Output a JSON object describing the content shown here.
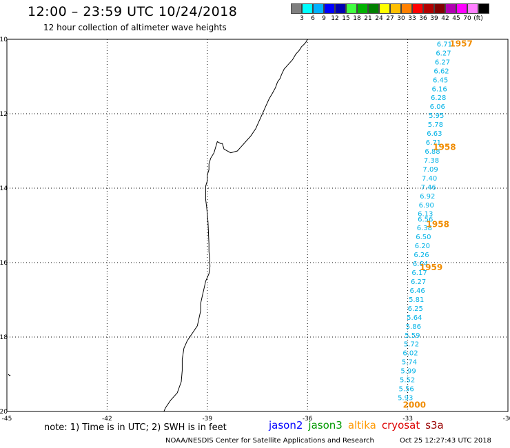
{
  "header": {
    "title": "12:00 – 23:59 UTC 10/24/2018",
    "subtitle": "12 hour collection of altimeter wave heights"
  },
  "legend": {
    "colors": [
      "#7f7f7f",
      "#00ffff",
      "#00b2ff",
      "#0000ff",
      "#0000b2",
      "#40ff40",
      "#00b200",
      "#008000",
      "#ffff00",
      "#ffbf00",
      "#ff8000",
      "#ff0000",
      "#b20000",
      "#800000",
      "#b200b2",
      "#ff00ff",
      "#ff80ff",
      "#000000"
    ],
    "labels": [
      "3",
      "6",
      "9",
      "12",
      "15",
      "18",
      "21",
      "24",
      "27",
      "30",
      "33",
      "36",
      "39",
      "42",
      "45",
      "70",
      "(ft)"
    ]
  },
  "axes": {
    "lon_ticks": [
      "-45",
      "-42",
      "-39",
      "-36",
      "-33",
      "-30"
    ],
    "lat_ticks": [
      "-10",
      "-12",
      "-14",
      "-16",
      "-18",
      "-20"
    ],
    "lon_range": [
      -45,
      -30
    ],
    "lat_range": [
      -20,
      -10
    ]
  },
  "track": {
    "color": "#00b2e6",
    "points": [
      {
        "lon": -31.9,
        "lat": -10.12,
        "value": "6.71"
      },
      {
        "lon": -31.93,
        "lat": -10.36,
        "value": "6.27"
      },
      {
        "lon": -31.96,
        "lat": -10.6,
        "value": "6.27"
      },
      {
        "lon": -31.99,
        "lat": -10.84,
        "value": "6.62"
      },
      {
        "lon": -32.02,
        "lat": -11.08,
        "value": "6.45"
      },
      {
        "lon": -32.05,
        "lat": -11.32,
        "value": "6.16"
      },
      {
        "lon": -32.08,
        "lat": -11.56,
        "value": "6.28"
      },
      {
        "lon": -32.11,
        "lat": -11.8,
        "value": "6.06"
      },
      {
        "lon": -32.14,
        "lat": -12.04,
        "value": "5.95"
      },
      {
        "lon": -32.17,
        "lat": -12.28,
        "value": "5.78"
      },
      {
        "lon": -32.2,
        "lat": -12.52,
        "value": "6.63"
      },
      {
        "lon": -32.23,
        "lat": -12.76,
        "value": "6.71"
      },
      {
        "lon": -32.26,
        "lat": -13.0,
        "value": "6.88"
      },
      {
        "lon": -32.29,
        "lat": -13.24,
        "value": "7.38"
      },
      {
        "lon": -32.32,
        "lat": -13.48,
        "value": "7.09"
      },
      {
        "lon": -32.35,
        "lat": -13.72,
        "value": "7.40"
      },
      {
        "lon": -32.38,
        "lat": -13.96,
        "value": "7.46"
      },
      {
        "lon": -32.41,
        "lat": -14.2,
        "value": "6.92"
      },
      {
        "lon": -32.44,
        "lat": -14.44,
        "value": "6.90"
      },
      {
        "lon": -32.47,
        "lat": -14.68,
        "value": "6.13"
      },
      {
        "lon": -32.47,
        "lat": -14.82,
        "value": "6.56"
      },
      {
        "lon": -32.5,
        "lat": -15.06,
        "value": "6.38"
      },
      {
        "lon": -32.53,
        "lat": -15.3,
        "value": "6.50"
      },
      {
        "lon": -32.56,
        "lat": -15.54,
        "value": "6.20"
      },
      {
        "lon": -32.59,
        "lat": -15.78,
        "value": "6.26"
      },
      {
        "lon": -32.62,
        "lat": -16.02,
        "value": "6.64"
      },
      {
        "lon": -32.65,
        "lat": -16.26,
        "value": "6.17"
      },
      {
        "lon": -32.68,
        "lat": -16.5,
        "value": "6.27"
      },
      {
        "lon": -32.71,
        "lat": -16.74,
        "value": "6.46"
      },
      {
        "lon": -32.74,
        "lat": -16.98,
        "value": "5.81"
      },
      {
        "lon": -32.77,
        "lat": -17.22,
        "value": "6.25"
      },
      {
        "lon": -32.8,
        "lat": -17.46,
        "value": "5.64"
      },
      {
        "lon": -32.83,
        "lat": -17.7,
        "value": "5.86"
      },
      {
        "lon": -32.86,
        "lat": -17.94,
        "value": "5.59"
      },
      {
        "lon": -32.89,
        "lat": -18.18,
        "value": "5.72"
      },
      {
        "lon": -32.92,
        "lat": -18.42,
        "value": "6.02"
      },
      {
        "lon": -32.95,
        "lat": -18.66,
        "value": "5.74"
      },
      {
        "lon": -32.98,
        "lat": -18.9,
        "value": "5.99"
      },
      {
        "lon": -33.01,
        "lat": -19.14,
        "value": "5.52"
      },
      {
        "lon": -33.04,
        "lat": -19.38,
        "value": "5.56"
      },
      {
        "lon": -33.07,
        "lat": -19.62,
        "value": "5.93"
      }
    ]
  },
  "time_labels": {
    "color": "#f08c00",
    "items": [
      {
        "text": "1957",
        "lon": -31.4,
        "lat": -10.12
      },
      {
        "text": "1958",
        "lon": -31.9,
        "lat": -12.9
      },
      {
        "text": "1958",
        "lon": -32.1,
        "lat": -14.97
      },
      {
        "text": "1959",
        "lon": -32.3,
        "lat": -16.13
      },
      {
        "text": "2000",
        "lon": -32.8,
        "lat": -19.82
      }
    ]
  },
  "coastline": {
    "color": "#000000",
    "points": [
      [
        -36.0,
        -10.0
      ],
      [
        -36.05,
        -10.08
      ],
      [
        -36.12,
        -10.15
      ],
      [
        -36.18,
        -10.2
      ],
      [
        -36.25,
        -10.3
      ],
      [
        -36.35,
        -10.4
      ],
      [
        -36.45,
        -10.55
      ],
      [
        -36.6,
        -10.7
      ],
      [
        -36.7,
        -10.8
      ],
      [
        -36.78,
        -10.95
      ],
      [
        -36.82,
        -11.05
      ],
      [
        -36.9,
        -11.15
      ],
      [
        -36.96,
        -11.3
      ],
      [
        -37.05,
        -11.45
      ],
      [
        -37.15,
        -11.6
      ],
      [
        -37.25,
        -11.8
      ],
      [
        -37.35,
        -12.0
      ],
      [
        -37.45,
        -12.2
      ],
      [
        -37.55,
        -12.4
      ],
      [
        -37.7,
        -12.6
      ],
      [
        -37.85,
        -12.75
      ],
      [
        -38.0,
        -12.9
      ],
      [
        -38.1,
        -13.0
      ],
      [
        -38.3,
        -13.05
      ],
      [
        -38.5,
        -12.95
      ],
      [
        -38.55,
        -12.8
      ],
      [
        -38.6,
        -12.8
      ],
      [
        -38.7,
        -12.75
      ],
      [
        -38.75,
        -12.9
      ],
      [
        -38.8,
        -13.05
      ],
      [
        -38.9,
        -13.2
      ],
      [
        -38.95,
        -13.35
      ],
      [
        -38.95,
        -13.5
      ],
      [
        -39.0,
        -13.65
      ],
      [
        -39.0,
        -13.8
      ],
      [
        -39.05,
        -13.95
      ],
      [
        -39.05,
        -14.1
      ],
      [
        -39.05,
        -14.3
      ],
      [
        -39.02,
        -14.5
      ],
      [
        -39.0,
        -14.7
      ],
      [
        -38.98,
        -14.9
      ],
      [
        -38.97,
        -15.1
      ],
      [
        -38.96,
        -15.3
      ],
      [
        -38.95,
        -15.5
      ],
      [
        -38.95,
        -15.7
      ],
      [
        -38.93,
        -15.9
      ],
      [
        -38.92,
        -16.1
      ],
      [
        -38.95,
        -16.3
      ],
      [
        -39.05,
        -16.5
      ],
      [
        -39.1,
        -16.7
      ],
      [
        -39.15,
        -16.9
      ],
      [
        -39.2,
        -17.1
      ],
      [
        -39.2,
        -17.3
      ],
      [
        -39.25,
        -17.5
      ],
      [
        -39.3,
        -17.7
      ],
      [
        -39.45,
        -17.9
      ],
      [
        -39.6,
        -18.1
      ],
      [
        -39.7,
        -18.3
      ],
      [
        -39.75,
        -18.6
      ],
      [
        -39.75,
        -18.9
      ],
      [
        -39.78,
        -19.2
      ],
      [
        -39.9,
        -19.5
      ],
      [
        -40.1,
        -19.7
      ],
      [
        -40.25,
        -19.9
      ],
      [
        -40.3,
        -20.0
      ]
    ]
  },
  "note": "note:  1) Time is in UTC;  2) SWH is in feet",
  "satellites": [
    {
      "name": "jason2",
      "color": "#0000ff"
    },
    {
      "name": "jason3",
      "color": "#009900"
    },
    {
      "name": "altika",
      "color": "#ff9900"
    },
    {
      "name": "cryosat",
      "color": "#dd0000"
    },
    {
      "name": "s3a",
      "color": "#990000"
    }
  ],
  "footer": {
    "credit": "NOAA/NESDIS Center for Satellite Applications and Research",
    "timestamp": "Oct 25 12:27:43 UTC 2018"
  }
}
